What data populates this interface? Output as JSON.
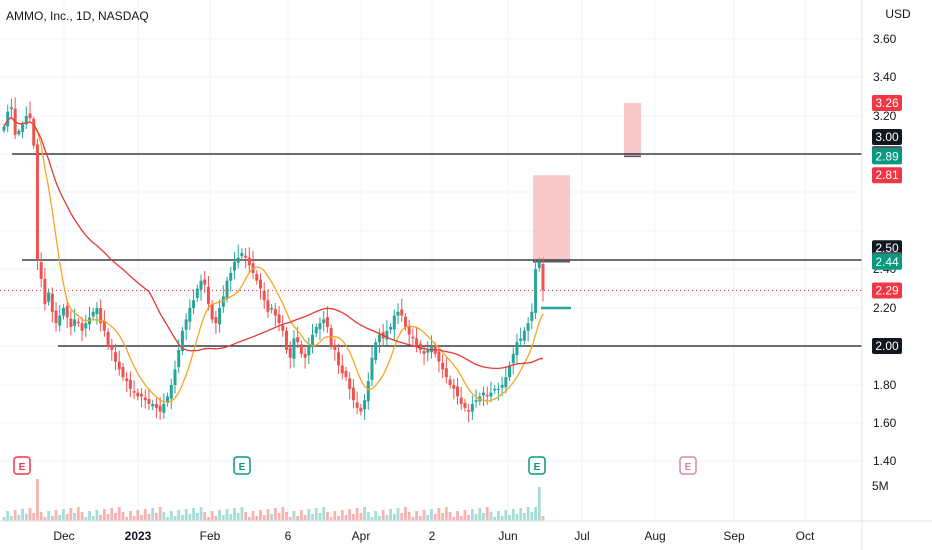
{
  "header": {
    "title": "AMMO, Inc., 1D, NASDAQ"
  },
  "colors": {
    "up": "#26a69a",
    "down": "#ef5350",
    "ma_fast": "#f5a623",
    "ma_slow": "#e53935",
    "grid": "#f0f3fa",
    "line": "#131722",
    "zone": "#f8bcbc"
  },
  "chart_data": {
    "type": "candlestick",
    "currency": "USD",
    "y_ticks": [
      "3.60",
      "3.40",
      "3.20",
      "2.40",
      "2.20",
      "1.80",
      "1.60",
      "1.40"
    ],
    "x_ticks": [
      "Dec",
      "2023",
      "Feb",
      "6",
      "Apr",
      "2",
      "Jun",
      "Jul",
      "Aug",
      "Sep",
      "Oct"
    ],
    "volume_label": "5M",
    "price_tags": [
      {
        "value": "3.26",
        "color": "#f23645"
      },
      {
        "value": "3.00",
        "color": "#131722"
      },
      {
        "value": "2.90",
        "color": "#555b66"
      },
      {
        "value": "2.89",
        "color": "#089981"
      },
      {
        "value": "2.81",
        "color": "#f23645"
      },
      {
        "value": "2.50",
        "color": "#131722"
      },
      {
        "value": "2.45",
        "color": "#555b66"
      },
      {
        "value": "2.44",
        "color": "#089981"
      },
      {
        "value": "2.29",
        "color": "#f23645"
      },
      {
        "value": "2.00",
        "color": "#131722"
      }
    ],
    "horizontal_lines": [
      2.9,
      2.45,
      2.0
    ],
    "last_price": 2.29,
    "events": [
      {
        "label": "E",
        "date": "2022-11-09",
        "color": "#f23645"
      },
      {
        "label": "E",
        "date": "2023-02-08",
        "color": "#089981"
      },
      {
        "label": "E",
        "date": "2023-06-14",
        "color": "#089981"
      },
      {
        "label": "E",
        "date": "2023-08-09",
        "color": "#d88aa0"
      }
    ],
    "closes": [
      3.1,
      3.22,
      3.24,
      3.02,
      3.06,
      3.12,
      3.2,
      3.18,
      2.95,
      2.45,
      2.35,
      2.22,
      2.28,
      2.18,
      2.12,
      2.16,
      2.2,
      2.15,
      2.1,
      2.14,
      2.12,
      2.08,
      2.12,
      2.15,
      2.18,
      2.2,
      2.12,
      2.08,
      2.0,
      1.98,
      1.92,
      1.88,
      1.84,
      1.82,
      1.78,
      1.76,
      1.74,
      1.74,
      1.72,
      1.7,
      1.7,
      1.68,
      1.66,
      1.7,
      1.74,
      1.8,
      1.88,
      1.98,
      2.08,
      2.14,
      2.2,
      2.24,
      2.3,
      2.34,
      2.32,
      2.22,
      2.14,
      2.12,
      2.2,
      2.26,
      2.34,
      2.38,
      2.44,
      2.46,
      2.48,
      2.46,
      2.42,
      2.38,
      2.34,
      2.3,
      2.24,
      2.18,
      2.2,
      2.16,
      2.12,
      2.08,
      1.98,
      1.94,
      2.04,
      2.02,
      1.96,
      1.94,
      2.0,
      2.06,
      2.1,
      2.12,
      2.14,
      2.1,
      2.0,
      1.98,
      1.9,
      1.86,
      1.84,
      1.78,
      1.72,
      1.68,
      1.66,
      1.72,
      1.82,
      1.94,
      2.02,
      2.06,
      2.04,
      2.08,
      2.1,
      2.16,
      2.18,
      2.16,
      2.1,
      2.06,
      2.04,
      2.0,
      1.98,
      1.96,
      1.98,
      2.0,
      1.96,
      1.92,
      1.88,
      1.84,
      1.8,
      1.78,
      1.74,
      1.7,
      1.68,
      1.66,
      1.7,
      1.72,
      1.74,
      1.76,
      1.74,
      1.76,
      1.78,
      1.78,
      1.8,
      1.84,
      1.9,
      1.96,
      2.02,
      2.04,
      2.08,
      2.12,
      2.18,
      2.4,
      2.44,
      2.29
    ],
    "vol_note": "daily volume profile estimated"
  }
}
